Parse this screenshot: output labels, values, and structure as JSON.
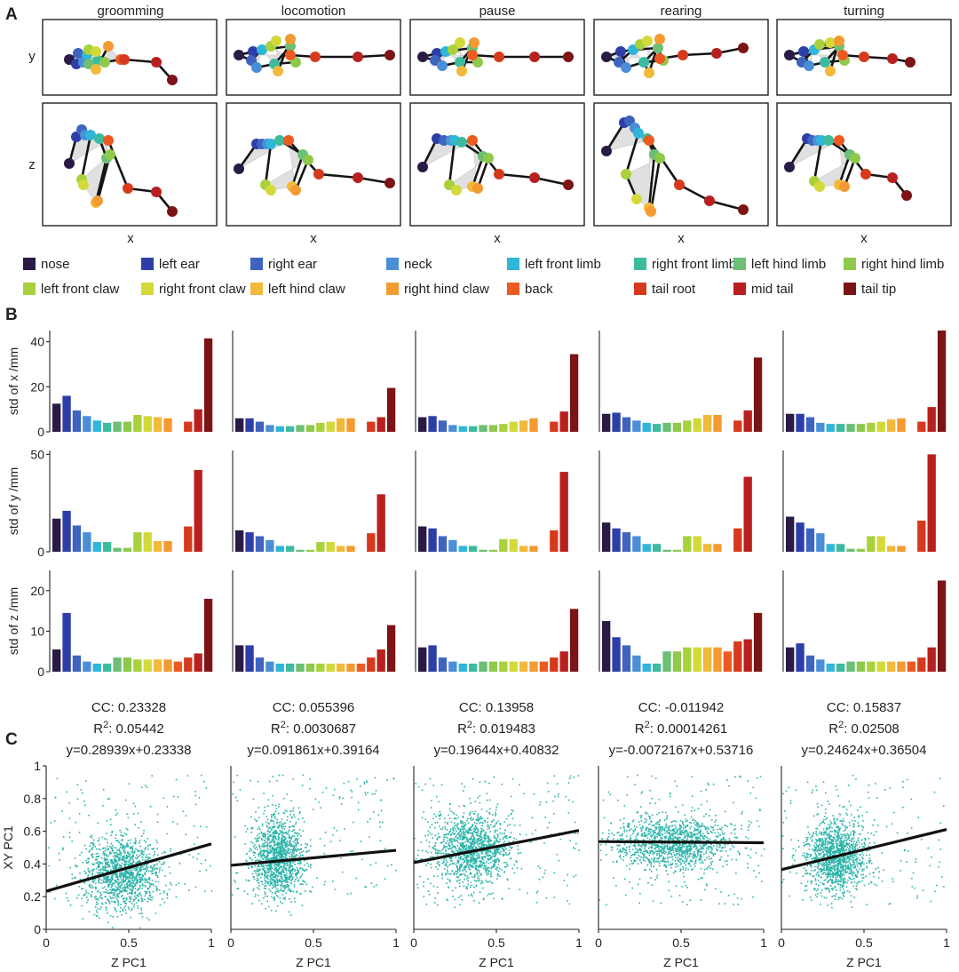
{
  "figure": {
    "panel_letters": [
      "A",
      "B",
      "C"
    ],
    "behaviors": [
      "groomming",
      "locomotion",
      "pause",
      "rearing",
      "turning"
    ],
    "skeleton_axis_labels": {
      "top_row_y": "y",
      "bottom_row_y": "z",
      "x": "x"
    }
  },
  "legend": {
    "items": [
      {
        "label": "nose",
        "color": "#2a1a46"
      },
      {
        "label": "left ear",
        "color": "#2e3ea8"
      },
      {
        "label": "right ear",
        "color": "#3f64c0"
      },
      {
        "label": "neck",
        "color": "#4a8fd6"
      },
      {
        "label": "left front limb",
        "color": "#2fb6d8"
      },
      {
        "label": "right front limb",
        "color": "#3dbb9f"
      },
      {
        "label": "left hind limb",
        "color": "#6cbf74"
      },
      {
        "label": "right hind limb",
        "color": "#8fc94c"
      },
      {
        "label": "left front claw",
        "color": "#a9d13b"
      },
      {
        "label": "right front claw",
        "color": "#d4d93a"
      },
      {
        "label": "left hind claw",
        "color": "#f2b93a"
      },
      {
        "label": "right hind claw",
        "color": "#f39a32"
      },
      {
        "label": "back",
        "color": "#ec5a20"
      },
      {
        "label": "tail root",
        "color": "#d63a1c"
      },
      {
        "label": "mid tail",
        "color": "#b8201f"
      },
      {
        "label": "tail tip",
        "color": "#7c1416"
      }
    ]
  },
  "chart_data": [
    {
      "type": "bar",
      "panel": "B",
      "description_rows": [
        "std of x /mm",
        "std of y /mm",
        "std of z /mm"
      ],
      "ylabel": [
        "std of x /mm",
        "std of y /mm",
        "std of z /mm"
      ],
      "ylim": [
        [
          0,
          45
        ],
        [
          0,
          52
        ],
        [
          0,
          25
        ]
      ],
      "yticks": [
        [
          0,
          20,
          40
        ],
        [
          0,
          50
        ],
        [
          0,
          10,
          20
        ]
      ],
      "bar_colors": [
        "#2a1a46",
        "#2e3ea8",
        "#3f64c0",
        "#4a8fd6",
        "#2fb6d8",
        "#3dbb9f",
        "#6cbf74",
        "#8fc94c",
        "#a9d13b",
        "#d4d93a",
        "#f2b93a",
        "#f39a32",
        "#ec5a20",
        "#d63a1c",
        "#b8201f",
        "#7c1416"
      ],
      "series": [
        {
          "behavior": "groomming",
          "std_x": [
            12.5,
            16,
            9.5,
            7,
            5,
            4,
            4.5,
            4.5,
            7.5,
            7,
            6.5,
            6,
            null,
            4.5,
            10,
            41.5
          ],
          "std_y": [
            17,
            21,
            13.5,
            10,
            5,
            5,
            2,
            2,
            10,
            10,
            5.5,
            5.5,
            null,
            13,
            42,
            null
          ],
          "std_z": [
            5.5,
            14.5,
            4,
            2.5,
            2,
            2,
            3.5,
            3.5,
            3,
            3,
            3,
            3,
            2.5,
            3.5,
            4.5,
            18
          ]
        },
        {
          "behavior": "locomotion",
          "std_x": [
            6,
            6,
            4.5,
            3,
            2.5,
            2.5,
            3,
            3,
            4,
            4.5,
            6,
            6,
            null,
            4.5,
            6.5,
            19.5
          ],
          "std_y": [
            11,
            10,
            8,
            6,
            3,
            3,
            1,
            1,
            5,
            5,
            3,
            3,
            null,
            9.5,
            29.5,
            null
          ],
          "std_z": [
            6.5,
            6.5,
            3.5,
            2.5,
            2,
            2,
            2,
            2,
            2,
            2,
            2,
            2,
            2,
            3.5,
            5.5,
            11.5
          ]
        },
        {
          "behavior": "pause",
          "std_x": [
            6.5,
            7,
            5,
            3,
            2.5,
            2.5,
            3,
            3,
            3.5,
            4.5,
            5,
            6,
            null,
            4.5,
            9,
            34.5
          ],
          "std_y": [
            13,
            12,
            8,
            6,
            3,
            3,
            1,
            1,
            6.5,
            6.5,
            3,
            3,
            null,
            11,
            41,
            null
          ],
          "std_z": [
            6,
            6.5,
            3.5,
            2.5,
            2,
            2,
            2.5,
            2.5,
            2.5,
            2.5,
            2.5,
            2.5,
            2.5,
            3.5,
            5,
            15.5
          ]
        },
        {
          "behavior": "rearing",
          "std_x": [
            8,
            8.5,
            6.5,
            5,
            4,
            3.5,
            4,
            4,
            5,
            6,
            7.5,
            7.5,
            null,
            5,
            9.5,
            33
          ],
          "std_y": [
            15,
            12,
            10,
            8,
            4,
            4,
            1,
            1,
            8,
            8,
            4,
            4,
            null,
            12,
            38.5,
            null
          ],
          "std_z": [
            12.5,
            8.5,
            6.5,
            4,
            2,
            2,
            5,
            5,
            6,
            6,
            6,
            6,
            5,
            7.5,
            8,
            14.5
          ]
        },
        {
          "behavior": "turning",
          "std_x": [
            8,
            8,
            6.5,
            4,
            3.5,
            3.5,
            3.5,
            3.5,
            4,
            4.5,
            5.5,
            6,
            null,
            4.5,
            11,
            45
          ],
          "std_y": [
            18,
            15,
            12,
            9.5,
            4,
            4,
            1.5,
            1.5,
            8,
            8,
            3,
            3,
            null,
            16,
            50,
            null
          ],
          "std_z": [
            6,
            7,
            4,
            3,
            2,
            2,
            2.5,
            2.5,
            2.5,
            2.5,
            2.5,
            2.5,
            2.5,
            3.5,
            6,
            22.5
          ]
        }
      ]
    },
    {
      "type": "scatter",
      "panel": "C",
      "xlabel": "Z PC1",
      "ylabel": "XY PC1",
      "xlim": [
        0,
        1
      ],
      "ylim": [
        0,
        1
      ],
      "xticks": [
        "0",
        "0.5",
        "1"
      ],
      "yticks": [
        "0",
        "0.2",
        "0.4",
        "0.6",
        "0.8",
        "1"
      ],
      "point_color": "#2ab3a8",
      "series": [
        {
          "behavior": "groomming",
          "cc": "CC: 0.23328",
          "r2_value": ": 0.05442",
          "fit": "y=0.28939x+0.23338",
          "slope": 0.28939,
          "intercept": 0.23338,
          "cluster": {
            "cx": 0.45,
            "cy": 0.35,
            "sx": 0.12,
            "sy": 0.11
          }
        },
        {
          "behavior": "locomotion",
          "cc": "CC: 0.055396",
          "r2_value": ": 0.0030687",
          "fit": "y=0.091861x+0.39164",
          "slope": 0.091861,
          "intercept": 0.39164,
          "cluster": {
            "cx": 0.28,
            "cy": 0.45,
            "sx": 0.08,
            "sy": 0.12
          }
        },
        {
          "behavior": "pause",
          "cc": "CC: 0.13958",
          "r2_value": ": 0.019483",
          "fit": "y=0.19644x+0.40832",
          "slope": 0.19644,
          "intercept": 0.40832,
          "cluster": {
            "cx": 0.35,
            "cy": 0.5,
            "sx": 0.12,
            "sy": 0.11
          }
        },
        {
          "behavior": "rearing",
          "cc": "CC: -0.011942",
          "r2_value": ": 0.00014261",
          "fit": "y=-0.0072167x+0.53716",
          "slope": -0.0072167,
          "intercept": 0.53716,
          "cluster": {
            "cx": 0.45,
            "cy": 0.53,
            "sx": 0.18,
            "sy": 0.08
          }
        },
        {
          "behavior": "turning",
          "cc": "CC: 0.15837",
          "r2_value": ": 0.02508",
          "fit": "y=0.24624x+0.36504",
          "slope": 0.24624,
          "intercept": 0.36504,
          "cluster": {
            "cx": 0.33,
            "cy": 0.45,
            "sx": 0.09,
            "sy": 0.11
          }
        }
      ]
    }
  ]
}
